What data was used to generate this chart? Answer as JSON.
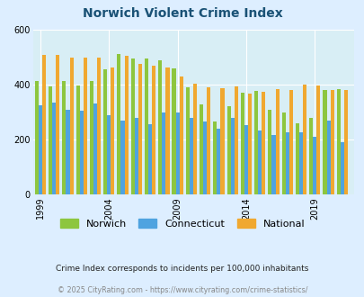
{
  "title": "Norwich Violent Crime Index",
  "title_color": "#1a5276",
  "background_color": "#ddeeff",
  "plot_bg_color": "#d8eef5",
  "years": [
    1999,
    2000,
    2001,
    2002,
    2003,
    2004,
    2005,
    2006,
    2007,
    2008,
    2009,
    2010,
    2011,
    2012,
    2013,
    2014,
    2015,
    2016,
    2017,
    2018,
    2019,
    2020,
    2021
  ],
  "norwich": [
    413,
    395,
    413,
    398,
    413,
    455,
    510,
    495,
    495,
    490,
    460,
    390,
    328,
    265,
    320,
    370,
    378,
    310,
    300,
    260,
    278,
    382,
    385
  ],
  "connecticut": [
    325,
    335,
    310,
    305,
    330,
    290,
    270,
    280,
    255,
    300,
    300,
    280,
    267,
    240,
    280,
    252,
    232,
    218,
    225,
    225,
    210,
    268,
    190
  ],
  "national": [
    508,
    508,
    500,
    498,
    498,
    463,
    505,
    475,
    468,
    462,
    430,
    403,
    390,
    387,
    392,
    366,
    374,
    385,
    381,
    399,
    397,
    381,
    381
  ],
  "norwich_color": "#8dc63f",
  "connecticut_color": "#4fa3e0",
  "national_color": "#f0a830",
  "xtick_positions": [
    1999,
    2004,
    2009,
    2014,
    2019
  ],
  "xtick_labels": [
    "1999",
    "2004",
    "2009",
    "2014",
    "2019"
  ],
  "ylim": [
    0,
    600
  ],
  "yticks": [
    0,
    200,
    400,
    600
  ],
  "legend_labels": [
    "Norwich",
    "Connecticut",
    "National"
  ],
  "footnote1": "Crime Index corresponds to incidents per 100,000 inhabitants",
  "footnote2": "© 2025 CityRating.com - https://www.cityrating.com/crime-statistics/",
  "footnote1_color": "#222222",
  "footnote2_color": "#888888"
}
